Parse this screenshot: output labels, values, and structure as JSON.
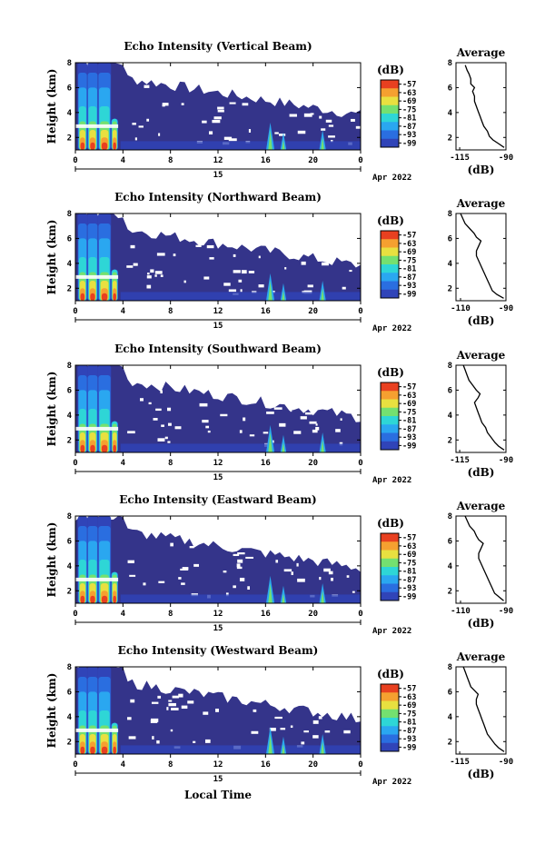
{
  "figure": {
    "x_axis_title": "Local Time",
    "date_suffix": "Apr 2022"
  },
  "chart_data": [
    {
      "type": "heatmap",
      "title": "Echo Intensity (Vertical Beam)",
      "ylabel": "Height (km)",
      "xlim": [
        0,
        24
      ],
      "ylim": [
        1,
        8
      ],
      "x_ticks": [
        "0",
        "4",
        "8",
        "12",
        "16",
        "20",
        "0"
      ],
      "y_ticks": [
        "2",
        "4",
        "6",
        "8"
      ],
      "day_label": "15",
      "colorbar": {
        "unit": "(dB)",
        "levels": [
          "-57",
          "-63",
          "-69",
          "-75",
          "-81",
          "-87",
          "-93",
          "-99"
        ]
      },
      "profile": {
        "title": "Average",
        "xlabel": "(dB)",
        "x_ticks": [
          "-115",
          "-90"
        ],
        "y_ticks": [
          "2",
          "4",
          "6",
          "8"
        ],
        "points": [
          [
            -91,
            1.2
          ],
          [
            -94,
            1.5
          ],
          [
            -97,
            1.8
          ],
          [
            -99,
            2.1
          ],
          [
            -100,
            2.5
          ],
          [
            -102,
            2.9
          ],
          [
            -103,
            3.3
          ],
          [
            -104,
            3.7
          ],
          [
            -105,
            4.1
          ],
          [
            -106,
            4.5
          ],
          [
            -107,
            4.9
          ],
          [
            -107,
            5.3
          ],
          [
            -108,
            5.7
          ],
          [
            -107,
            6.0
          ],
          [
            -109,
            6.3
          ],
          [
            -109,
            6.7
          ],
          [
            -110,
            7.1
          ],
          [
            -111,
            7.4
          ],
          [
            -112,
            7.8
          ]
        ]
      }
    },
    {
      "type": "heatmap",
      "title": "Echo Intensity (Northward Beam)",
      "ylabel": "Height (km)",
      "xlim": [
        0,
        24
      ],
      "ylim": [
        1,
        8
      ],
      "x_ticks": [
        "0",
        "4",
        "8",
        "12",
        "16",
        "20",
        "0"
      ],
      "y_ticks": [
        "2",
        "4",
        "6",
        "8"
      ],
      "day_label": "15",
      "colorbar": {
        "unit": "(dB)",
        "levels": [
          "-57",
          "-63",
          "-69",
          "-75",
          "-81",
          "-87",
          "-93",
          "-99"
        ]
      },
      "profile": {
        "title": "Average",
        "xlabel": "(dB)",
        "x_ticks": [
          "-110",
          "-90"
        ],
        "y_ticks": [
          "2",
          "4",
          "6",
          "8"
        ],
        "points": [
          [
            -91,
            1.2
          ],
          [
            -94,
            1.5
          ],
          [
            -96,
            1.8
          ],
          [
            -97,
            2.2
          ],
          [
            -98,
            2.6
          ],
          [
            -99,
            3.0
          ],
          [
            -100,
            3.4
          ],
          [
            -101,
            3.8
          ],
          [
            -102,
            4.2
          ],
          [
            -103,
            4.6
          ],
          [
            -103,
            5.0
          ],
          [
            -102,
            5.4
          ],
          [
            -101,
            5.8
          ],
          [
            -103,
            6.1
          ],
          [
            -104,
            6.4
          ],
          [
            -106,
            6.8
          ],
          [
            -108,
            7.2
          ],
          [
            -109,
            7.6
          ],
          [
            -110,
            8.0
          ]
        ]
      }
    },
    {
      "type": "heatmap",
      "title": "Echo Intensity (Southward Beam)",
      "ylabel": "Height (km)",
      "xlim": [
        0,
        24
      ],
      "ylim": [
        1,
        8
      ],
      "x_ticks": [
        "0",
        "4",
        "8",
        "12",
        "16",
        "20",
        "0"
      ],
      "y_ticks": [
        "2",
        "4",
        "6",
        "8"
      ],
      "day_label": "15",
      "colorbar": {
        "unit": "(dB)",
        "levels": [
          "-57",
          "-63",
          "-69",
          "-75",
          "-81",
          "-87",
          "-93",
          "-99"
        ]
      },
      "profile": {
        "title": "Average",
        "xlabel": "(dB)",
        "x_ticks": [
          "-115",
          "-90"
        ],
        "y_ticks": [
          "2",
          "4",
          "6",
          "8"
        ],
        "points": [
          [
            -91,
            1.2
          ],
          [
            -94,
            1.5
          ],
          [
            -96,
            1.8
          ],
          [
            -98,
            2.2
          ],
          [
            -100,
            2.6
          ],
          [
            -101,
            3.0
          ],
          [
            -103,
            3.4
          ],
          [
            -104,
            3.8
          ],
          [
            -105,
            4.2
          ],
          [
            -106,
            4.6
          ],
          [
            -107,
            5.0
          ],
          [
            -105,
            5.4
          ],
          [
            -104,
            5.7
          ],
          [
            -106,
            6.0
          ],
          [
            -108,
            6.4
          ],
          [
            -110,
            6.8
          ],
          [
            -111,
            7.2
          ],
          [
            -112,
            7.6
          ],
          [
            -113,
            8.0
          ]
        ]
      }
    },
    {
      "type": "heatmap",
      "title": "Echo Intensity (Eastward Beam)",
      "ylabel": "Height (km)",
      "xlim": [
        0,
        24
      ],
      "ylim": [
        1,
        8
      ],
      "x_ticks": [
        "0",
        "4",
        "8",
        "12",
        "16",
        "20",
        "0"
      ],
      "y_ticks": [
        "2",
        "4",
        "6",
        "8"
      ],
      "day_label": "15",
      "colorbar": {
        "unit": "(dB)",
        "levels": [
          "-57",
          "-63",
          "-69",
          "-75",
          "-81",
          "-87",
          "-93",
          "-99"
        ]
      },
      "profile": {
        "title": "Average",
        "xlabel": "(dB)",
        "x_ticks": [
          "-110",
          "-90"
        ],
        "y_ticks": [
          "2",
          "4",
          "6",
          "8"
        ],
        "points": [
          [
            -91,
            1.2
          ],
          [
            -93,
            1.5
          ],
          [
            -95,
            1.8
          ],
          [
            -96,
            2.2
          ],
          [
            -97,
            2.6
          ],
          [
            -98,
            3.0
          ],
          [
            -99,
            3.4
          ],
          [
            -100,
            3.8
          ],
          [
            -101,
            4.2
          ],
          [
            -102,
            4.6
          ],
          [
            -102,
            5.0
          ],
          [
            -101,
            5.4
          ],
          [
            -100,
            5.8
          ],
          [
            -102,
            6.1
          ],
          [
            -103,
            6.4
          ],
          [
            -104,
            6.8
          ],
          [
            -106,
            7.2
          ],
          [
            -107,
            7.6
          ],
          [
            -108,
            8.0
          ]
        ]
      }
    },
    {
      "type": "heatmap",
      "title": "Echo Intensity (Westward Beam)",
      "ylabel": "Height (km)",
      "xlim": [
        0,
        24
      ],
      "ylim": [
        1,
        8
      ],
      "x_ticks": [
        "0",
        "4",
        "8",
        "12",
        "16",
        "20",
        "0"
      ],
      "y_ticks": [
        "2",
        "4",
        "6",
        "8"
      ],
      "day_label": "15",
      "colorbar": {
        "unit": "(dB)",
        "levels": [
          "-57",
          "-63",
          "-69",
          "-75",
          "-81",
          "-87",
          "-93",
          "-99"
        ]
      },
      "profile": {
        "title": "Average",
        "xlabel": "(dB)",
        "x_ticks": [
          "-115",
          "-90"
        ],
        "y_ticks": [
          "2",
          "4",
          "6",
          "8"
        ],
        "points": [
          [
            -91,
            1.2
          ],
          [
            -94,
            1.5
          ],
          [
            -96,
            1.8
          ],
          [
            -98,
            2.2
          ],
          [
            -100,
            2.6
          ],
          [
            -101,
            3.0
          ],
          [
            -102,
            3.4
          ],
          [
            -103,
            3.8
          ],
          [
            -104,
            4.2
          ],
          [
            -105,
            4.6
          ],
          [
            -106,
            5.0
          ],
          [
            -106,
            5.4
          ],
          [
            -105,
            5.8
          ],
          [
            -107,
            6.1
          ],
          [
            -109,
            6.4
          ],
          [
            -110,
            6.8
          ],
          [
            -111,
            7.2
          ],
          [
            -112,
            7.6
          ],
          [
            -113,
            8.0
          ]
        ]
      }
    }
  ],
  "colors": {
    "background_blue": "#34348a",
    "palette": [
      "#2c2f7a",
      "#3044b8",
      "#2a6ee0",
      "#2aa7f0",
      "#2ed6d6",
      "#74e070",
      "#e8e040",
      "#f5a030",
      "#e84020"
    ]
  }
}
